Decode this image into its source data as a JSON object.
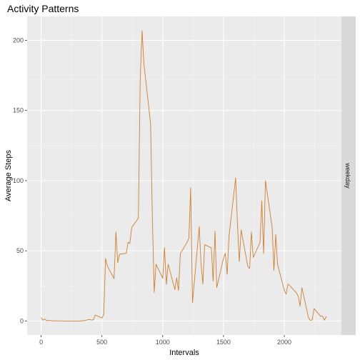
{
  "chart_data": {
    "type": "line",
    "title": "Activity Patterns",
    "xlabel": "Intervals",
    "ylabel": "Average Steps",
    "facet_label": "weekday",
    "xlim": [
      -115,
      2470
    ],
    "ylim": [
      -10,
      217
    ],
    "x_ticks": [
      0,
      500,
      1000,
      1500,
      2000
    ],
    "y_ticks": [
      0,
      50,
      100,
      150,
      200
    ],
    "grid": true,
    "line_color": "#cd7f32",
    "series": [
      {
        "x": [
          0,
          15,
          30,
          45,
          60,
          100,
          150,
          200,
          250,
          300,
          350,
          400,
          415,
          430,
          445,
          500,
          515,
          530,
          545,
          600,
          615,
          630,
          645,
          700,
          715,
          730,
          745,
          800,
          815,
          830,
          845,
          900,
          915,
          930,
          945,
          1000,
          1015,
          1030,
          1045,
          1100,
          1115,
          1130,
          1145,
          1200,
          1215,
          1230,
          1245,
          1300,
          1315,
          1330,
          1345,
          1400,
          1415,
          1430,
          1445,
          1500,
          1515,
          1530,
          1545,
          1600,
          1615,
          1630,
          1645,
          1700,
          1715,
          1730,
          1745,
          1800,
          1815,
          1830,
          1845,
          1900,
          1915,
          1930,
          1945,
          2000,
          2015,
          2030,
          2045,
          2100,
          2115,
          2130,
          2145,
          2200,
          2215,
          2230,
          2245,
          2300,
          2315,
          2330,
          2345
        ],
        "y": [
          2.3,
          0.5,
          1.4,
          0.2,
          0.4,
          0.1,
          0.1,
          0.0,
          0.0,
          0.0,
          0.2,
          1.1,
          0.6,
          0.9,
          4.2,
          2.1,
          4.5,
          44.5,
          39.1,
          30.2,
          63.4,
          41.6,
          47.5,
          48.2,
          56.1,
          55.3,
          66.7,
          73.2,
          172.4,
          206.9,
          183.5,
          140.7,
          73.8,
          20.3,
          40.4,
          30.5,
          52.3,
          26.1,
          40.5,
          22.3,
          30.8,
          21.7,
          48.1,
          55.9,
          58.9,
          94.8,
          13.1,
          67.3,
          41.1,
          26.3,
          54.3,
          52.2,
          28.4,
          64.0,
          23.8,
          44.7,
          48.2,
          33.2,
          60.3,
          101.9,
          68.4,
          42.3,
          64.9,
          38.9,
          37.4,
          63.3,
          45.2,
          55.9,
          85.6,
          48.1,
          100.0,
          66.7,
          36.1,
          61.5,
          40.3,
          21.9,
          19.1,
          26.3,
          25.2,
          20.0,
          17.5,
          10.6,
          23.7,
          2.1,
          0.4,
          0.8,
          8.9,
          3.3,
          3.5,
          0.5,
          3.3
        ]
      }
    ]
  }
}
